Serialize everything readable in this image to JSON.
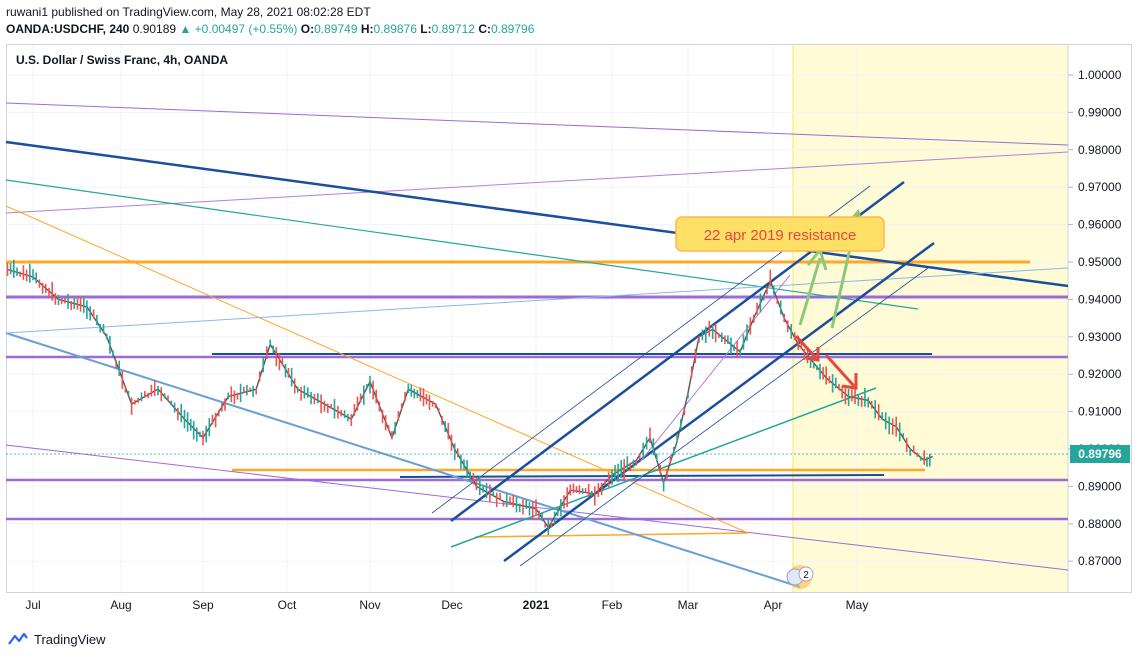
{
  "header": {
    "publisher": "ruwani1 published on TradingView.com, May 28, 2021 08:02:28 EDT",
    "ticker_line": "OANDA:USDCHF, 240",
    "last_price": "0.90189",
    "change_arrow": "▲",
    "change": "+0.00497 (+0.55%)",
    "o_label": "O:",
    "o_value": "0.89749",
    "h_label": "H:",
    "h_value": "0.89876",
    "l_label": "L:",
    "l_value": "0.89712",
    "c_label": "C:",
    "c_value": "0.89796"
  },
  "chart_title": "U.S. Dollar / Swiss Franc, 4h, OANDA",
  "footer": {
    "brand": "TradingView"
  },
  "colors": {
    "up": "#26a69a",
    "down": "#ef5350",
    "grid": "#f0f3fa",
    "highlight": "#fffbd6",
    "price_tag": "#26a69a"
  },
  "chart_data": {
    "type": "line",
    "title": "U.S. Dollar / Swiss Franc, 4h, OANDA",
    "x_ticks": [
      "Jul",
      "Aug",
      "Sep",
      "Oct",
      "Nov",
      "Dec",
      "2021",
      "Feb",
      "Mar",
      "Apr",
      "May"
    ],
    "y_ticks": [
      "1.00000",
      "0.99000",
      "0.98000",
      "0.97000",
      "0.96000",
      "0.95000",
      "0.94000",
      "0.93000",
      "0.92000",
      "0.91000",
      "0.90000",
      "0.89000",
      "0.88000",
      "0.87000"
    ],
    "ylim": [
      0.862,
      1.005
    ],
    "current_price_label": "0.89796",
    "annotation": "22 apr 2019 resistance",
    "grid": true,
    "price_path": [
      {
        "x": "2020-06-22",
        "y": 0.948
      },
      {
        "x": "2020-07-01",
        "y": 0.946
      },
      {
        "x": "2020-07-10",
        "y": 0.94
      },
      {
        "x": "2020-07-20",
        "y": 0.938
      },
      {
        "x": "2020-07-27",
        "y": 0.93
      },
      {
        "x": "2020-08-05",
        "y": 0.912
      },
      {
        "x": "2020-08-15",
        "y": 0.916
      },
      {
        "x": "2020-08-25",
        "y": 0.908
      },
      {
        "x": "2020-09-01",
        "y": 0.903
      },
      {
        "x": "2020-09-10",
        "y": 0.914
      },
      {
        "x": "2020-09-20",
        "y": 0.916
      },
      {
        "x": "2020-09-25",
        "y": 0.928
      },
      {
        "x": "2020-10-05",
        "y": 0.916
      },
      {
        "x": "2020-10-15",
        "y": 0.912
      },
      {
        "x": "2020-10-25",
        "y": 0.908
      },
      {
        "x": "2020-11-01",
        "y": 0.918
      },
      {
        "x": "2020-11-09",
        "y": 0.903
      },
      {
        "x": "2020-11-15",
        "y": 0.916
      },
      {
        "x": "2020-11-25",
        "y": 0.912
      },
      {
        "x": "2020-12-02",
        "y": 0.9
      },
      {
        "x": "2020-12-10",
        "y": 0.89
      },
      {
        "x": "2020-12-20",
        "y": 0.886
      },
      {
        "x": "2021-01-01",
        "y": 0.884
      },
      {
        "x": "2021-01-06",
        "y": 0.879
      },
      {
        "x": "2021-01-15",
        "y": 0.889
      },
      {
        "x": "2021-01-25",
        "y": 0.888
      },
      {
        "x": "2021-02-01",
        "y": 0.893
      },
      {
        "x": "2021-02-10",
        "y": 0.897
      },
      {
        "x": "2021-02-15",
        "y": 0.903
      },
      {
        "x": "2021-02-20",
        "y": 0.891
      },
      {
        "x": "2021-02-25",
        "y": 0.902
      },
      {
        "x": "2021-03-01",
        "y": 0.915
      },
      {
        "x": "2021-03-05",
        "y": 0.93
      },
      {
        "x": "2021-03-10",
        "y": 0.932
      },
      {
        "x": "2021-03-20",
        "y": 0.926
      },
      {
        "x": "2021-03-25",
        "y": 0.935
      },
      {
        "x": "2021-03-31",
        "y": 0.945
      },
      {
        "x": "2021-04-05",
        "y": 0.935
      },
      {
        "x": "2021-04-10",
        "y": 0.928
      },
      {
        "x": "2021-04-20",
        "y": 0.919
      },
      {
        "x": "2021-04-28",
        "y": 0.914
      },
      {
        "x": "2021-05-05",
        "y": 0.913
      },
      {
        "x": "2021-05-10",
        "y": 0.908
      },
      {
        "x": "2021-05-15",
        "y": 0.906
      },
      {
        "x": "2021-05-20",
        "y": 0.9
      },
      {
        "x": "2021-05-25",
        "y": 0.897
      },
      {
        "x": "2021-05-28",
        "y": 0.898
      }
    ]
  }
}
